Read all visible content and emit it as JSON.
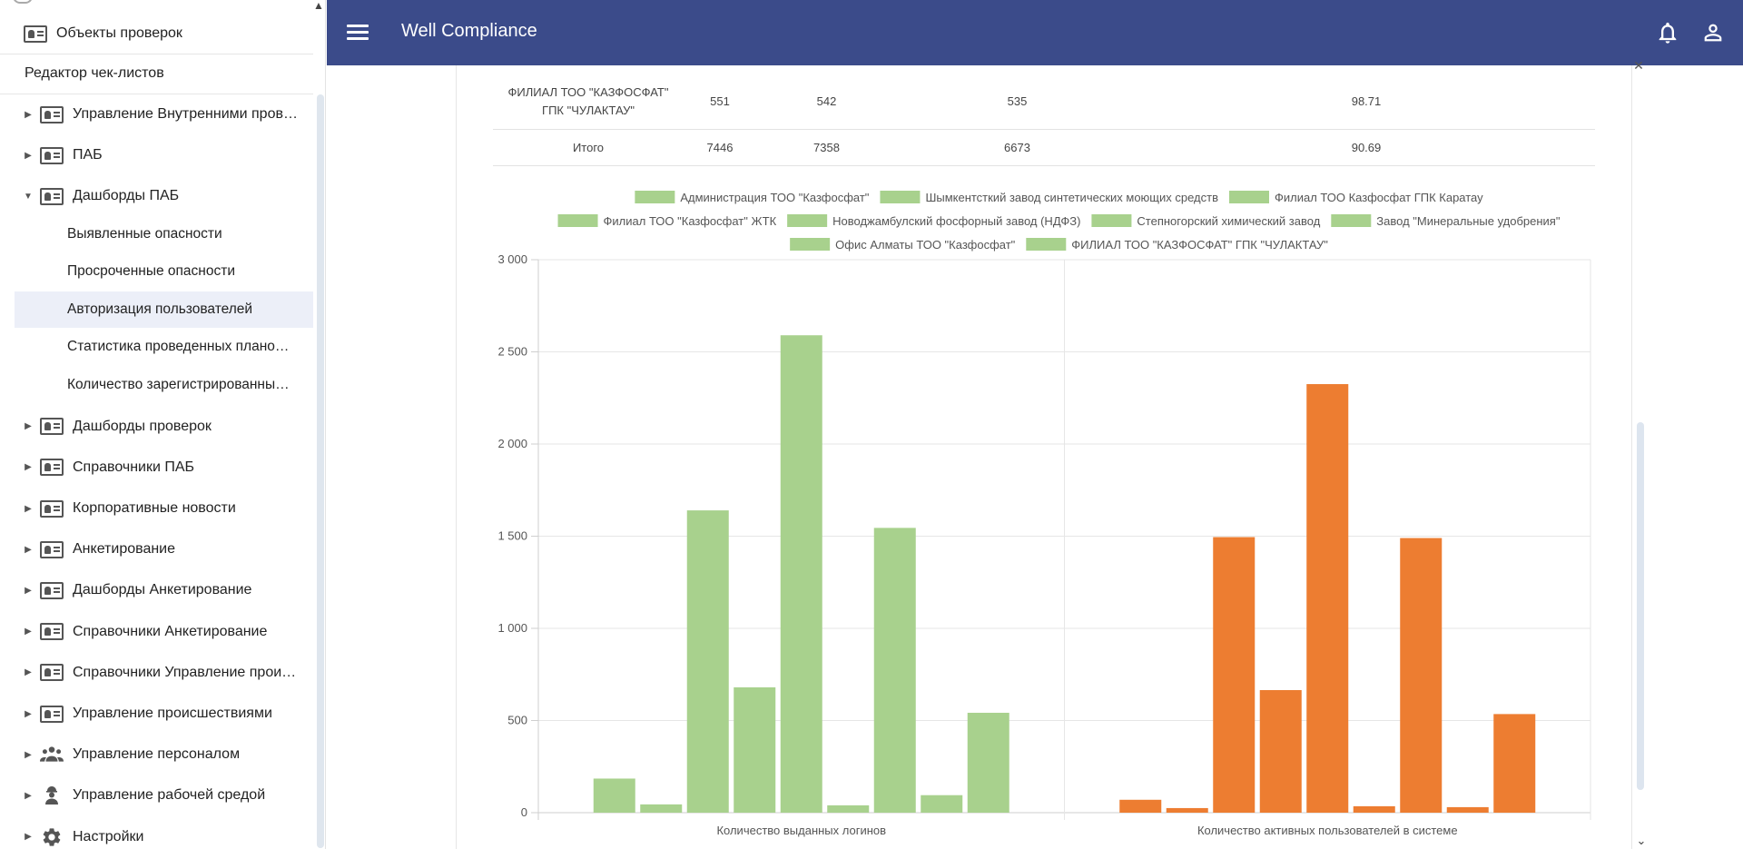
{
  "app": {
    "title": "Well Compliance"
  },
  "sidebar": {
    "top_items": [
      {
        "label": "Объекты проверок",
        "icon": "contact-card-icon"
      },
      {
        "label": "Редактор чек-листов"
      }
    ],
    "groups": [
      {
        "label": "Управление Внутренними пров…",
        "icon": "contact-card-icon",
        "expanded": false
      },
      {
        "label": "ПАБ",
        "icon": "contact-card-icon",
        "expanded": false
      },
      {
        "label": "Дашборды ПАБ",
        "icon": "contact-card-icon",
        "expanded": true,
        "children": [
          {
            "label": "Выявленные опасности"
          },
          {
            "label": "Просроченные опасности"
          },
          {
            "label": "Авторизация пользователей",
            "active": true
          },
          {
            "label": "Статистика проведенных плано…"
          },
          {
            "label": "Количество зарегистрированны…"
          }
        ]
      },
      {
        "label": "Дашборды проверок",
        "icon": "contact-card-icon",
        "expanded": false
      },
      {
        "label": "Справочники ПАБ",
        "icon": "contact-card-icon",
        "expanded": false
      },
      {
        "label": "Корпоративные новости",
        "icon": "contact-card-icon",
        "expanded": false
      },
      {
        "label": "Анкетирование",
        "icon": "contact-card-icon",
        "expanded": false
      },
      {
        "label": "Дашборды Анкетирование",
        "icon": "contact-card-icon",
        "expanded": false
      },
      {
        "label": "Справочники Анкетирование",
        "icon": "contact-card-icon",
        "expanded": false
      },
      {
        "label": "Справочники Управление прои…",
        "icon": "contact-card-icon",
        "expanded": false
      },
      {
        "label": "Управление происшествиями",
        "icon": "contact-card-icon",
        "expanded": false
      },
      {
        "label": "Управление персоналом",
        "icon": "people-icon",
        "expanded": false
      },
      {
        "label": "Управление рабочей средой",
        "icon": "worker-icon",
        "expanded": false
      },
      {
        "label": "Настройки",
        "icon": "gear-icon",
        "expanded": false
      }
    ]
  },
  "header": {
    "menu_icon": "hamburger-menu-icon",
    "bell_icon": "bell-icon",
    "user_icon": "account-icon"
  },
  "table": {
    "rows": [
      {
        "name_line1": "ФИЛИАЛ ТОО \"КАЗФОСФАТ\"",
        "name_line2": "ГПК \"ЧУЛАКТАУ\"",
        "c1": "551",
        "c2": "542",
        "c3": "535",
        "c4": "98.71"
      },
      {
        "name_line1": "Итого",
        "name_line2": "",
        "c1": "7446",
        "c2": "7358",
        "c3": "6673",
        "c4": "90.69"
      }
    ]
  },
  "chart_data": {
    "type": "bar",
    "categories": [
      "Количество выданных логинов",
      "Количество активных пользователей в системе"
    ],
    "series": [
      {
        "name": "Администрация ТОО \"Казфосфат\"",
        "values": [
          185,
          70
        ]
      },
      {
        "name": "Шымкентсткий завод синтетических моющих средств",
        "values": [
          45,
          25
        ]
      },
      {
        "name": "Филиал ТОО Казфосфат ГПК Каратау",
        "values": [
          1640,
          1495
        ]
      },
      {
        "name": "Филиал ТОО \"Казфосфат\" ЖТК",
        "values": [
          680,
          665
        ]
      },
      {
        "name": "Новоджамбулский фосфорный завод (НДФЗ)",
        "values": [
          2590,
          2325
        ]
      },
      {
        "name": "Степногорский химический завод",
        "values": [
          40,
          35
        ]
      },
      {
        "name": "Завод \"Минеральные удобрения\"",
        "values": [
          1545,
          1490
        ]
      },
      {
        "name": "Офис Алматы ТОО \"Казфосфат\"",
        "values": [
          95,
          30
        ]
      },
      {
        "name": "ФИЛИАЛ ТОО \"КАЗФОСФАТ\" ГПК \"ЧУЛАКТАУ\"",
        "values": [
          542,
          535
        ]
      }
    ],
    "category_colors": [
      "#a8d18d",
      "#ed7d31"
    ],
    "legend_color": "#a8d18d",
    "yticks": [
      "0",
      "500",
      "1 000",
      "1 500",
      "2 000",
      "2 500",
      "3 000"
    ],
    "ylim": [
      0,
      3000
    ],
    "grid": true,
    "legend_position": "top"
  }
}
